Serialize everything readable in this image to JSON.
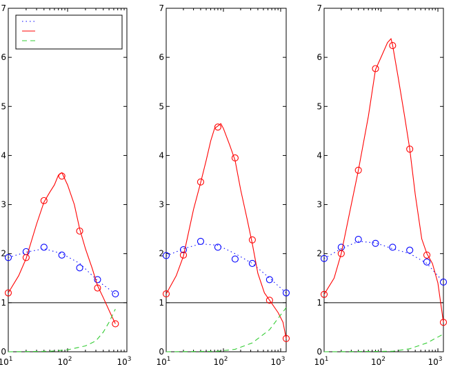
{
  "chart_data": [
    {
      "type": "line",
      "xscale": "log",
      "xlim": [
        10,
        1000
      ],
      "ylim": [
        0,
        7
      ],
      "xticks": [
        {
          "base": "10",
          "exp": "1",
          "value": 10
        },
        {
          "base": "10",
          "exp": "2",
          "value": 100
        },
        {
          "base": "10",
          "exp": "3",
          "value": 1000
        }
      ],
      "yticks": [
        "0",
        "1",
        "2",
        "3",
        "4",
        "5",
        "6",
        "7"
      ],
      "reference_line_y": 1,
      "legend": {
        "placement": "top-left",
        "entries": [
          {
            "series": "blue"
          },
          {
            "series": "red"
          },
          {
            "series": "green"
          }
        ]
      },
      "series": [
        {
          "id": "blue",
          "style": "dotted",
          "color": "#0000ff",
          "line": [
            [
              10,
              1.92
            ],
            [
              20,
              2.03
            ],
            [
              40,
              2.1
            ],
            [
              80,
              2.0
            ],
            [
              160,
              1.8
            ],
            [
              320,
              1.45
            ],
            [
              640,
              1.18
            ]
          ],
          "markers": [
            [
              10,
              1.92
            ],
            [
              20,
              2.04
            ],
            [
              40,
              2.13
            ],
            [
              80,
              1.97
            ],
            [
              160,
              1.71
            ],
            [
              320,
              1.47
            ],
            [
              640,
              1.18
            ]
          ]
        },
        {
          "id": "red",
          "style": "solid",
          "color": "#ff0000",
          "line": [
            [
              10,
              1.2
            ],
            [
              15,
              1.55
            ],
            [
              20,
              1.9
            ],
            [
              30,
              2.6
            ],
            [
              40,
              3.05
            ],
            [
              50,
              3.25
            ],
            [
              60,
              3.4
            ],
            [
              70,
              3.6
            ],
            [
              80,
              3.65
            ],
            [
              100,
              3.4
            ],
            [
              130,
              3.0
            ],
            [
              160,
              2.5
            ],
            [
              200,
              2.1
            ],
            [
              260,
              1.7
            ],
            [
              320,
              1.35
            ],
            [
              400,
              1.1
            ],
            [
              520,
              0.8
            ],
            [
              640,
              0.57
            ]
          ],
          "markers": [
            [
              10,
              1.2
            ],
            [
              20,
              1.92
            ],
            [
              40,
              3.08
            ],
            [
              80,
              3.58
            ],
            [
              160,
              2.46
            ],
            [
              320,
              1.3
            ],
            [
              640,
              0.57
            ]
          ]
        },
        {
          "id": "green",
          "style": "dashed",
          "color": "#33cc33",
          "line": [
            [
              10,
              0.0
            ],
            [
              50,
              0.01
            ],
            [
              100,
              0.04
            ],
            [
              200,
              0.12
            ],
            [
              300,
              0.22
            ],
            [
              400,
              0.4
            ],
            [
              500,
              0.6
            ],
            [
              600,
              0.8
            ],
            [
              640,
              0.87
            ]
          ]
        }
      ]
    },
    {
      "type": "line",
      "xscale": "log",
      "xlim": [
        10,
        1250
      ],
      "ylim": [
        0,
        7
      ],
      "xticks": [
        {
          "base": "10",
          "exp": "1",
          "value": 10
        },
        {
          "base": "10",
          "exp": "2",
          "value": 100
        },
        {
          "base": "10",
          "exp": "3",
          "value": 1000
        }
      ],
      "yticks": [
        "0",
        "1",
        "2",
        "3",
        "4",
        "5",
        "6",
        "7"
      ],
      "reference_line_y": 1,
      "series": [
        {
          "id": "blue",
          "style": "dotted",
          "color": "#0000ff",
          "line": [
            [
              10,
              1.95
            ],
            [
              20,
              2.1
            ],
            [
              40,
              2.2
            ],
            [
              80,
              2.17
            ],
            [
              160,
              2.0
            ],
            [
              320,
              1.8
            ],
            [
              640,
              1.5
            ],
            [
              1250,
              1.2
            ]
          ],
          "markers": [
            [
              10,
              1.96
            ],
            [
              20,
              2.08
            ],
            [
              40,
              2.25
            ],
            [
              80,
              2.13
            ],
            [
              160,
              1.89
            ],
            [
              320,
              1.8
            ],
            [
              640,
              1.47
            ],
            [
              1250,
              1.2
            ]
          ]
        },
        {
          "id": "red",
          "style": "solid",
          "color": "#ff0000",
          "line": [
            [
              10,
              1.18
            ],
            [
              15,
              1.55
            ],
            [
              20,
              1.95
            ],
            [
              30,
              2.9
            ],
            [
              40,
              3.45
            ],
            [
              50,
              3.9
            ],
            [
              60,
              4.3
            ],
            [
              70,
              4.55
            ],
            [
              80,
              4.6
            ],
            [
              90,
              4.65
            ],
            [
              100,
              4.55
            ],
            [
              130,
              4.2
            ],
            [
              160,
              3.9
            ],
            [
              200,
              3.3
            ],
            [
              260,
              2.7
            ],
            [
              320,
              2.2
            ],
            [
              400,
              1.6
            ],
            [
              520,
              1.2
            ],
            [
              640,
              1.05
            ],
            [
              900,
              0.8
            ],
            [
              1100,
              0.6
            ],
            [
              1250,
              0.27
            ]
          ],
          "markers": [
            [
              10,
              1.18
            ],
            [
              20,
              1.97
            ],
            [
              40,
              3.46
            ],
            [
              80,
              4.58
            ],
            [
              160,
              3.95
            ],
            [
              320,
              2.28
            ],
            [
              640,
              1.05
            ],
            [
              1250,
              0.27
            ]
          ]
        },
        {
          "id": "green",
          "style": "dashed",
          "color": "#33cc33",
          "line": [
            [
              10,
              0.0
            ],
            [
              80,
              0.01
            ],
            [
              160,
              0.05
            ],
            [
              320,
              0.18
            ],
            [
              640,
              0.45
            ],
            [
              1000,
              0.75
            ],
            [
              1250,
              0.9
            ]
          ]
        }
      ]
    },
    {
      "type": "line",
      "xscale": "log",
      "xlim": [
        10,
        1250
      ],
      "ylim": [
        0,
        7
      ],
      "xticks": [
        {
          "base": "10",
          "exp": "1",
          "value": 10
        },
        {
          "base": "10",
          "exp": "2",
          "value": 100
        },
        {
          "base": "10",
          "exp": "3",
          "value": 1000
        }
      ],
      "yticks": [
        "0",
        "1",
        "2",
        "3",
        "4",
        "5",
        "6",
        "7"
      ],
      "reference_line_y": 1,
      "series": [
        {
          "id": "blue",
          "style": "dotted",
          "color": "#0000ff",
          "line": [
            [
              10,
              1.9
            ],
            [
              20,
              2.1
            ],
            [
              40,
              2.25
            ],
            [
              80,
              2.22
            ],
            [
              160,
              2.1
            ],
            [
              320,
              2.0
            ],
            [
              640,
              1.8
            ],
            [
              1250,
              1.42
            ]
          ],
          "markers": [
            [
              10,
              1.9
            ],
            [
              20,
              2.13
            ],
            [
              40,
              2.29
            ],
            [
              80,
              2.21
            ],
            [
              160,
              2.13
            ],
            [
              320,
              2.07
            ],
            [
              640,
              1.83
            ],
            [
              1250,
              1.42
            ]
          ]
        },
        {
          "id": "red",
          "style": "solid",
          "color": "#ff0000",
          "line": [
            [
              10,
              1.17
            ],
            [
              15,
              1.5
            ],
            [
              20,
              2.0
            ],
            [
              30,
              3.0
            ],
            [
              40,
              3.7
            ],
            [
              60,
              4.8
            ],
            [
              80,
              5.75
            ],
            [
              100,
              6.0
            ],
            [
              130,
              6.3
            ],
            [
              150,
              6.38
            ],
            [
              160,
              6.25
            ],
            [
              200,
              5.6
            ],
            [
              260,
              4.8
            ],
            [
              320,
              4.13
            ],
            [
              400,
              3.2
            ],
            [
              520,
              2.3
            ],
            [
              640,
              2.0
            ],
            [
              800,
              1.8
            ],
            [
              1000,
              1.4
            ],
            [
              1250,
              0.6
            ]
          ],
          "markers": [
            [
              10,
              1.17
            ],
            [
              20,
              2.0
            ],
            [
              40,
              3.7
            ],
            [
              80,
              5.77
            ],
            [
              160,
              6.24
            ],
            [
              320,
              4.13
            ],
            [
              640,
              1.97
            ],
            [
              1250,
              0.6
            ]
          ]
        },
        {
          "id": "green",
          "style": "dashed",
          "color": "#33cc33",
          "line": [
            [
              10,
              0.0
            ],
            [
              160,
              0.01
            ],
            [
              320,
              0.06
            ],
            [
              640,
              0.18
            ],
            [
              1000,
              0.3
            ],
            [
              1250,
              0.36
            ]
          ]
        }
      ]
    }
  ]
}
